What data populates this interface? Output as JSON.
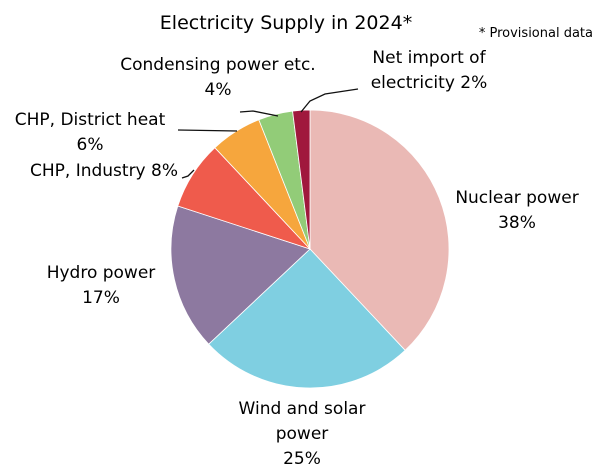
{
  "chart_data": {
    "type": "pie",
    "title": "Electricity Supply in 2024*",
    "note": "* Provisional data",
    "slices": [
      {
        "label_lines": [
          "Nuclear power",
          "38%"
        ],
        "value": 38,
        "color": "#eab9b5"
      },
      {
        "label_lines": [
          "Wind and solar",
          "power",
          "25%"
        ],
        "value": 25,
        "color": "#7fcfe1"
      },
      {
        "label_lines": [
          "Hydro power",
          "17%"
        ],
        "value": 17,
        "color": "#8d79a0"
      },
      {
        "label_lines": [
          "CHP, Industry  8%"
        ],
        "value": 8,
        "color": "#ef5b4c"
      },
      {
        "label_lines": [
          "CHP, District heat",
          "6%"
        ],
        "value": 6,
        "color": "#f6a63d"
      },
      {
        "label_lines": [
          "Condensing power etc.",
          "4%"
        ],
        "value": 4,
        "color": "#92cc78"
      },
      {
        "label_lines": [
          "Net import of",
          "electricity 2%"
        ],
        "value": 2,
        "color": "#a0183d"
      }
    ]
  }
}
